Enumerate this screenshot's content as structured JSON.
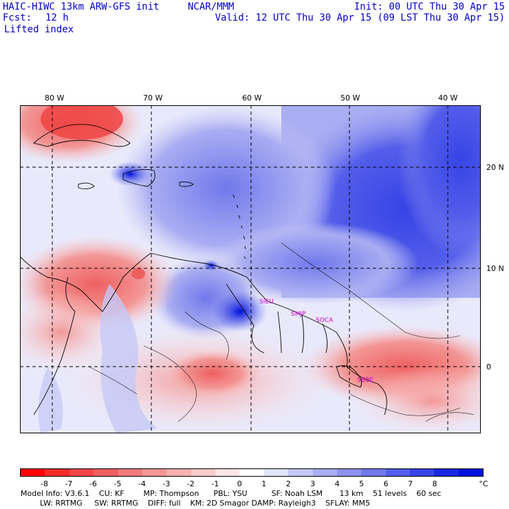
{
  "header": {
    "model": "HAIC-HIWC 13km ARW-GFS init",
    "org": "NCAR/MMM",
    "init": "Init: 00 UTC Thu 30 Apr 15",
    "fcst_label": "Fcst:",
    "fcst_value": "12 h",
    "valid": "Valid: 12 UTC Thu 30 Apr 15 (09 LST Thu 30 Apr 15)",
    "field": "Lifted index"
  },
  "map": {
    "lon_labels": [
      "80 W",
      "70 W",
      "60 W",
      "50 W",
      "40 W"
    ],
    "lat_labels": [
      "20 N",
      "10 N",
      "0"
    ],
    "stations": [
      "SIEU",
      "SMJP",
      "SOCA",
      "SBBE"
    ]
  },
  "colorbar": {
    "labels": [
      "-8",
      "-7",
      "-6",
      "-5",
      "-4",
      "-3",
      "-2",
      "-1",
      "0",
      "1",
      "2",
      "3",
      "4",
      "5",
      "6",
      "7",
      "8"
    ],
    "unit": "°C",
    "colors": [
      "#ff0000",
      "#f52a2a",
      "#f04545",
      "#ee6060",
      "#f07b7b",
      "#f39696",
      "#f6b0b0",
      "#f9caca",
      "#fde5e5",
      "#ffffff",
      "#e2e4fb",
      "#c5c8f6",
      "#a9adf2",
      "#8d92ee",
      "#7078eb",
      "#545eea",
      "#3744e6",
      "#1a27e2",
      "#0010dd"
    ]
  },
  "footer": {
    "line1": "Model Info: V3.6.1    CU: KF        MP: Thompson      PBL: YSU          SF: Noah LSM       13 km    51 levels    60 sec",
    "line2": "        LW: RRTMG     SW: RRTMG    DIFF: full    KM: 2D Smagor DAMP: Rayleigh3    SFLAY: MM5"
  }
}
